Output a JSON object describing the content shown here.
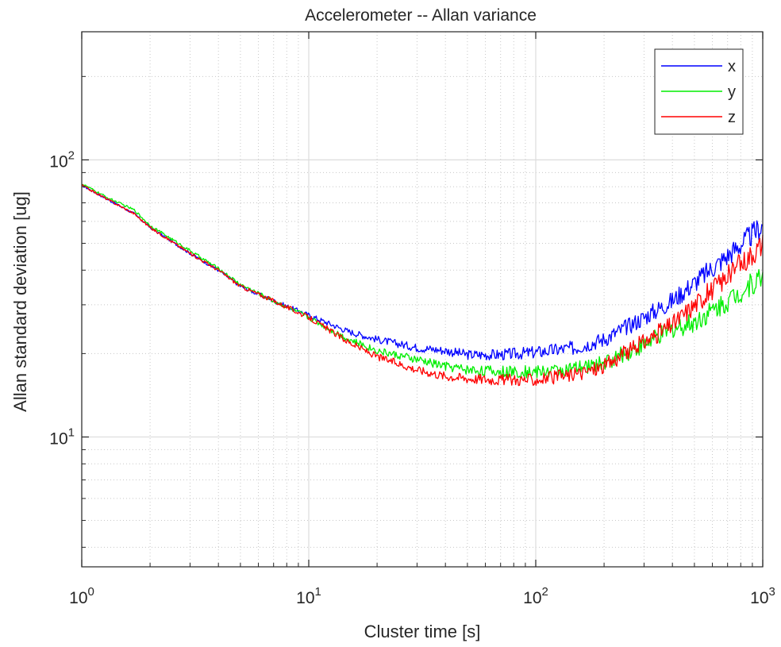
{
  "chart_data": {
    "type": "line",
    "title": "Accelerometer -- Allan variance",
    "xlabel": "Cluster time [s]",
    "ylabel": "Allan standard deviation [ug]",
    "xscale": "log",
    "yscale": "log",
    "xlim": [
      1,
      1000
    ],
    "ylim": [
      3.4,
      290
    ],
    "grid": true,
    "minor_grid": true,
    "legend_position": "top-right",
    "x_ticks": [
      {
        "value": 1,
        "base": "10",
        "exp": "0"
      },
      {
        "value": 10,
        "base": "10",
        "exp": "1"
      },
      {
        "value": 100,
        "base": "10",
        "exp": "2"
      },
      {
        "value": 1000,
        "base": "10",
        "exp": "3"
      }
    ],
    "y_ticks": [
      {
        "value": 10,
        "base": "10",
        "exp": "1"
      },
      {
        "value": 100,
        "base": "10",
        "exp": "2"
      }
    ],
    "x": [
      1,
      1.3,
      1.7,
      2,
      3,
      4,
      5,
      7,
      10,
      15,
      20,
      30,
      40,
      50,
      70,
      100,
      150,
      200,
      300,
      400,
      500,
      700,
      1000
    ],
    "series": [
      {
        "name": "x",
        "color": "#0000ff",
        "values": [
          81,
          72,
          64,
          57,
          46,
          40,
          35,
          31,
          27.5,
          24,
          22.5,
          21,
          20.5,
          19.8,
          19.8,
          20.2,
          21,
          22.5,
          27,
          31,
          36,
          45,
          58
        ]
      },
      {
        "name": "y",
        "color": "#00ee00",
        "values": [
          82,
          73,
          66,
          58,
          47,
          40.5,
          35.5,
          31,
          27,
          22.5,
          20.5,
          19,
          18,
          17.5,
          17.2,
          17.2,
          17.6,
          18.5,
          21.5,
          24.5,
          26,
          31,
          38
        ]
      },
      {
        "name": "z",
        "color": "#ff0000",
        "values": [
          81,
          72,
          64,
          57,
          46,
          40,
          35,
          31,
          27,
          22,
          19.5,
          17.5,
          16.6,
          16.3,
          16.1,
          16.1,
          16.8,
          18,
          22,
          25.5,
          30,
          38,
          50
        ]
      }
    ]
  }
}
